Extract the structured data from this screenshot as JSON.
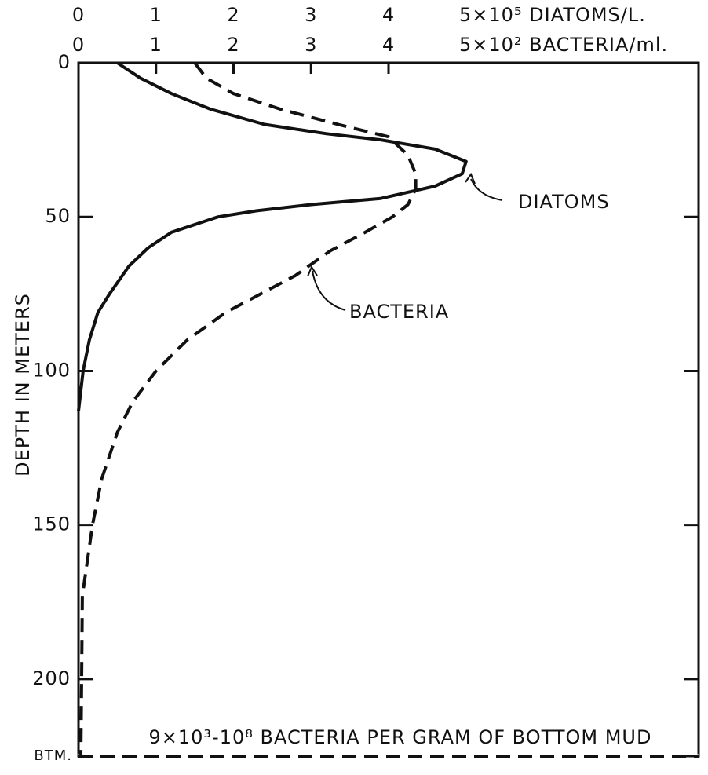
{
  "chart_data": {
    "type": "line",
    "x_label": "5×10⁵ DIATOMS/L.",
    "x2_label": "5×10² BACTERIA/ml.",
    "y_label": "DEPTH IN METERS",
    "annotation": "9×10³-10⁸ BACTERIA PER GRAM OF BOTTOM MUD",
    "xlim": [
      0,
      8
    ],
    "xticks": [
      0,
      1,
      2,
      3,
      4
    ],
    "x2lim": [
      0,
      8
    ],
    "x2ticks": [
      0,
      1,
      2,
      3,
      4
    ],
    "ylim": [
      0,
      225
    ],
    "y_inverted": true,
    "yticks": [
      0,
      50,
      100,
      150,
      200,
      {
        "value": 225,
        "label": "BTM."
      }
    ],
    "series": [
      {
        "name": "DIATOMS",
        "color": "#111111",
        "dash": false,
        "y": [
          0,
          5,
          10,
          15,
          20,
          23,
          25,
          28,
          32,
          36,
          40,
          44,
          46,
          48,
          50,
          55,
          60,
          66,
          75,
          81,
          90,
          100,
          113
        ],
        "values": [
          0.5,
          0.8,
          1.2,
          1.7,
          2.4,
          3.2,
          3.9,
          4.6,
          5.0,
          4.95,
          4.6,
          3.9,
          3.0,
          2.3,
          1.8,
          1.2,
          0.9,
          0.65,
          0.4,
          0.25,
          0.14,
          0.06,
          0
        ]
      },
      {
        "name": "BACTERIA",
        "color": "#111111",
        "dash": true,
        "axis": "x2",
        "y": [
          0,
          5,
          10,
          15,
          20,
          24,
          30,
          36,
          41,
          46,
          50,
          55,
          61,
          69,
          81,
          90,
          100,
          110,
          120,
          135,
          150,
          173,
          200,
          225
        ],
        "values": [
          1.5,
          1.65,
          2.0,
          2.6,
          3.35,
          4.0,
          4.25,
          4.35,
          4.35,
          4.25,
          4.05,
          3.7,
          3.25,
          2.8,
          1.9,
          1.4,
          1.0,
          0.7,
          0.5,
          0.3,
          0.18,
          0.05,
          0.04,
          0.03
        ]
      }
    ]
  }
}
